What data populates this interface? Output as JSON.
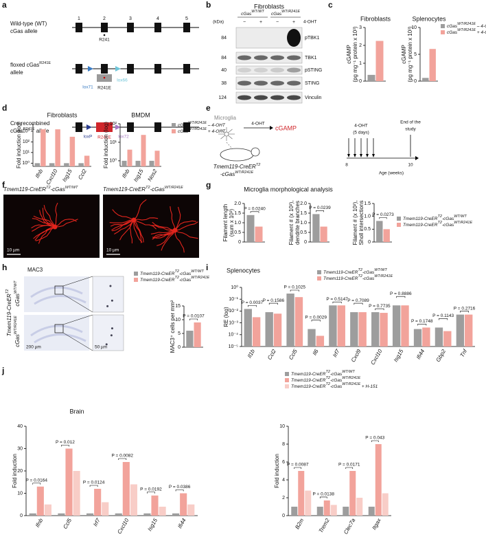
{
  "letters": [
    "a",
    "b",
    "c",
    "d",
    "e",
    "f",
    "g",
    "h",
    "i",
    "j"
  ],
  "a": {
    "rows": [
      [
        [
          "Wild-type (WT)"
        ],
        [
          "cGas allele"
        ]
      ],
      [
        [
          "floxed cGas",
          "R241E"
        ],
        [
          "allele"
        ]
      ],
      [
        [
          "Cre-recombined"
        ],
        [
          "cGas",
          "R241E",
          " allele"
        ]
      ]
    ],
    "exons": [
      "1",
      "2",
      "3",
      "4",
      "5"
    ],
    "wt_site": "R241",
    "floxed_sites": [
      "lox71",
      "lox66"
    ],
    "floxed_mut": "R241E",
    "cre_sites": [
      "loxP",
      "lox72"
    ],
    "cre_mut": "R241E"
  },
  "b": {
    "title": "Fibroblasts",
    "groups": [
      [
        "cGas",
        "WT/WT"
      ],
      [
        "cGas",
        "WT/R241E"
      ]
    ],
    "unit": "(kDa)",
    "lanes": [
      "−",
      "+",
      "−",
      "+"
    ],
    "treatment": "4-OHT",
    "bands": [
      {
        "kda": "84",
        "name": "pTBK1"
      },
      {
        "kda": "84",
        "name": "TBK1"
      },
      {
        "kda": "40",
        "name": "pSTING"
      },
      {
        "kda": "38",
        "name": "STING"
      },
      {
        "kda": "124",
        "name": "Vinculin"
      }
    ]
  },
  "c": {
    "series": [
      {
        "name": [
          "cGas",
          "WT/R241E",
          " – 4-OHT"
        ],
        "color": "#9d9d9d"
      },
      {
        "name": [
          "cGas",
          "WT/R241E",
          " + 4-OHT"
        ],
        "color": "#f2a39b"
      }
    ],
    "charts": [
      {
        "title": "Fibroblasts",
        "ylabel": [
          "cGAMP",
          "(pg mg⁻¹ protein x 10³)"
        ],
        "ylim": [
          0,
          3
        ],
        "yticks": [
          0,
          1,
          2,
          3
        ],
        "values": [
          [
            0.35
          ],
          [
            2.25
          ]
        ]
      },
      {
        "title": "Splenocytes",
        "ylabel": [
          "cGAMP",
          "(pg mg⁻¹ protein x 10³)"
        ],
        "ylim": [
          0,
          10
        ],
        "yticks": [
          0,
          5,
          10
        ],
        "values": [
          [
            0.6
          ],
          [
            6
          ]
        ]
      }
    ]
  },
  "d": {
    "series": [
      {
        "name": [
          "cGas",
          "WT/R241E",
          " – 4-OHT"
        ],
        "color": "#9d9d9d"
      },
      {
        "name": [
          "cGas",
          "WT/R241E",
          " + 4-OHT"
        ],
        "color": "#f2a39b"
      }
    ],
    "charts": [
      {
        "title": "Fibroblasts",
        "ylabel": [
          "Fold induction (log)"
        ],
        "log": true,
        "ylim": [
          0.5,
          5000
        ],
        "yticks": [
          {
            "value": 1,
            "label": "10⁰"
          },
          {
            "value": 10,
            "label": "10¹"
          },
          {
            "value": 100,
            "label": "10²"
          },
          {
            "value": 1000,
            "label": "10³"
          }
        ],
        "categories": [
          "Ifnb",
          "Cxcl10",
          "Isg15",
          "Ccl2"
        ],
        "values": [
          [
            1,
            1,
            1,
            1
          ],
          [
            1500,
            1500,
            300,
            5
          ]
        ]
      },
      {
        "title": "BMDM",
        "ylabel": [
          "Fold induction (log)"
        ],
        "log": true,
        "ylim": [
          0.5,
          100
        ],
        "yticks": [
          {
            "value": 1,
            "label": "10⁰"
          },
          {
            "value": 10,
            "label": "10¹"
          },
          {
            "value": 100,
            "label": "10²"
          }
        ],
        "categories": [
          "Ifnb",
          "Isg15",
          "Nos2"
        ],
        "values": [
          [
            1,
            1,
            1
          ],
          [
            4,
            25,
            3.5
          ]
        ]
      }
    ]
  },
  "e": {
    "cell": "Microglia",
    "treatment": "4-OHT",
    "product": "cGAMP",
    "dosing": [
      "4-OHT",
      "(5 days)"
    ],
    "end": [
      "End of the",
      "study"
    ],
    "mouse": [
      [
        "Tmem119-CreER",
        "T2"
      ],
      [
        "-cGas",
        "WT/R241E"
      ]
    ],
    "ages": [
      "8",
      "10"
    ],
    "axis": "Age (weeks)"
  },
  "f": {
    "titles": [
      [
        "Tmem119-CreER",
        "T2",
        "-cGas",
        "WT/WT"
      ],
      [
        "Tmem119-CreER",
        "T2",
        "-cGas",
        "WT/R241E"
      ]
    ],
    "scale": "10 µm"
  },
  "g": {
    "title": "Microglia morphological analysis",
    "series": [
      {
        "name": [
          "Tmem119-CreER",
          "T2",
          "-cGas",
          "WT/WT"
        ],
        "color": "#9d9d9d"
      },
      {
        "name": [
          "Tmem119-CreER",
          "T2",
          "-cGas",
          "WT/R241E"
        ],
        "color": "#f2a39b"
      }
    ],
    "charts": [
      {
        "ylabel": [
          "Filament length",
          "(sum x 10³)"
        ],
        "ylim": [
          0,
          2
        ],
        "yticks": [
          0,
          0.5,
          {
            "value": 1,
            "label": "1.0"
          },
          1.5,
          {
            "value": 2,
            "label": "2.0"
          }
        ],
        "values": [
          [
            1.4
          ],
          [
            0.8
          ]
        ],
        "pvalues": [
          "P = 0.0240"
        ]
      },
      {
        "ylabel": [
          "Filament # (x 10³),",
          "dendrite branches"
        ],
        "ylim": [
          0,
          2
        ],
        "yticks": [
          0,
          0.5,
          {
            "value": 1,
            "label": "1.0"
          },
          1.5,
          {
            "value": 2,
            "label": "2.0"
          }
        ],
        "values": [
          [
            1.45
          ],
          [
            0.8
          ]
        ],
        "pvalues": [
          "P = 0.0239"
        ]
      },
      {
        "ylabel": [
          "Filament # (x 10³),",
          "Sholl intersections"
        ],
        "ylim": [
          0,
          1.5
        ],
        "yticks": [
          0,
          0.5,
          {
            "value": 1,
            "label": "1.0"
          },
          1.5
        ],
        "values": [
          [
            0.82
          ],
          [
            0.5
          ]
        ],
        "pvalues": [
          "P = 0.0273"
        ]
      }
    ]
  },
  "h": {
    "title": "MAC3",
    "genotype": [
      "Tmem119-CreER",
      "T2"
    ],
    "rows": [
      [
        "cGas",
        "WT/WT"
      ],
      [
        "cGas",
        "WT/R241E"
      ]
    ],
    "scales": [
      "200 µm",
      "50 µm"
    ],
    "series": [
      {
        "name": [
          "Tmem119-CreER",
          "T2",
          "-cGas",
          "WT/WT"
        ],
        "color": "#9d9d9d"
      },
      {
        "name": [
          "Tmem119-CreER",
          "T2",
          "-cGas",
          "WT/R241E"
        ],
        "color": "#f2a39b"
      }
    ],
    "chart": {
      "ylabel": [
        "MAC3⁺ cells per mm²"
      ],
      "ylim": [
        0,
        15
      ],
      "yticks": [
        0,
        5,
        10,
        15
      ],
      "values": [
        [
          6
        ],
        [
          9
        ]
      ],
      "pvalues": [
        "P = 0.0107"
      ]
    }
  },
  "i": {
    "title": "Splenocytes",
    "series": [
      {
        "name": [
          "Tmem119-CreER",
          "T2",
          "-cGas",
          "WT/WT"
        ],
        "color": "#9d9d9d"
      },
      {
        "name": [
          "Tmem119-CreER",
          "T2",
          "-cGas",
          "WT/R241E"
        ],
        "color": "#f2a39b"
      }
    ],
    "chart": {
      "ylabel": [
        "RE (log)"
      ],
      "log": true,
      "ylim": [
        1e-05,
        1
      ],
      "yticks": [
        {
          "value": 1,
          "label": "10⁰"
        },
        {
          "value": 0.1,
          "label": "10⁻¹"
        },
        {
          "value": 0.01,
          "label": "10⁻²"
        },
        {
          "value": 0.001,
          "label": "10⁻³"
        },
        {
          "value": 0.0001,
          "label": "10⁻⁴"
        },
        {
          "value": 1e-05,
          "label": "10⁻⁵"
        }
      ],
      "categories": [
        "Il1b",
        "Ccl2",
        "Ccl5",
        "Il6",
        "Irf7",
        "Cxcl9",
        "Cxcl10",
        "Isg15",
        "Ifi44",
        "Gbp2",
        "Tnf"
      ],
      "values": [
        [
          0.015,
          0.008,
          0.3,
          0.0003,
          0.03,
          0.008,
          0.008,
          0.03,
          0.0003,
          0.0004,
          0.005
        ],
        [
          0.003,
          0.006,
          0.15,
          8e-05,
          0.03,
          0.008,
          0.007,
          0.03,
          0.0004,
          0.0002,
          0.005
        ]
      ],
      "pvalues": [
        "P = 0.0037",
        "P = 0.1586",
        "P = 0.1025",
        "P = 0.0029",
        "P = 0.5147",
        "P = 0.7089",
        "P = 0.7735",
        "P = 0.8886",
        "P = 0.1748",
        "P = 0.1143",
        "P = 0.2716"
      ]
    }
  },
  "j": {
    "title": "Brain",
    "series": [
      {
        "name": [
          "Tmem119-CreER",
          "T2",
          "-cGas",
          "WT/WT"
        ],
        "color": "#9d9d9d"
      },
      {
        "name": [
          "Tmem119-CreER",
          "T2",
          "-cGas",
          "WT/R241E"
        ],
        "color": "#f2a39b"
      },
      {
        "name": [
          "Tmem119-CreER",
          "T2",
          "-cGas",
          "WT/R241E",
          " + H-151"
        ],
        "color": "#f8cdc7"
      }
    ],
    "charts": [
      {
        "ylabel": [
          "Fold induction"
        ],
        "ylim": [
          0,
          40
        ],
        "yticks": [
          0,
          10,
          20,
          30,
          40
        ],
        "categories": [
          "Ifnb",
          "Ccl5",
          "Irf7",
          "Cxcl10",
          "Isg15",
          "Ifi44"
        ],
        "values": [
          [
            1,
            1,
            1,
            1,
            1,
            1
          ],
          [
            13,
            30,
            12,
            24,
            9,
            10
          ],
          [
            5,
            20,
            6,
            14,
            4,
            5
          ]
        ],
        "pvalues": [
          "P = 0.0164",
          "P = 0.012",
          "P = 0.0124",
          "P = 0.0082",
          "P = 0.0192",
          "P = 0.0386"
        ]
      },
      {
        "ylabel": [
          "Fold induction"
        ],
        "ylim": [
          0,
          10
        ],
        "yticks": [
          0,
          2,
          4,
          6,
          8,
          10
        ],
        "categories": [
          "B2m",
          "Trem2",
          "Clec7a",
          "Itgax"
        ],
        "values": [
          [
            1,
            1,
            1,
            1
          ],
          [
            5,
            1.7,
            5,
            8
          ],
          [
            2.8,
            1.2,
            2,
            2.5
          ]
        ],
        "pvalues": [
          "P = 0.0087",
          "P = 0.0138",
          "P = 0.0171",
          "P = 0.043"
        ]
      }
    ]
  }
}
